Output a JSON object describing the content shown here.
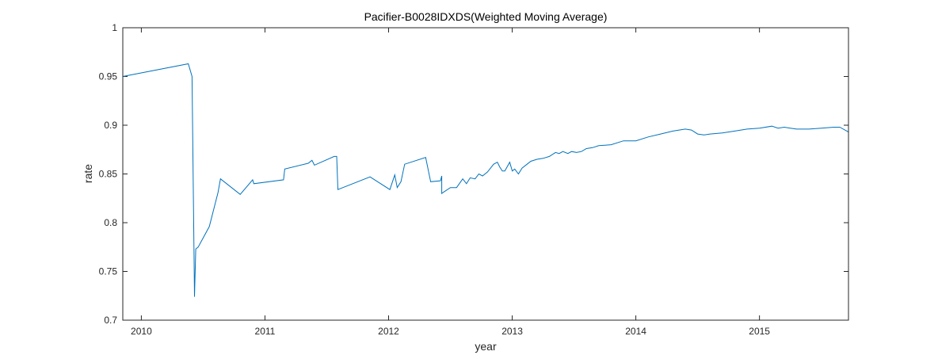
{
  "chart_data": {
    "type": "line",
    "title": "Pacifier-B0028IDXDS(Weighted Moving Average)",
    "xlabel": "year",
    "ylabel": "rate",
    "xlim": [
      2009.85,
      2015.72
    ],
    "ylim": [
      0.7,
      1.0
    ],
    "x_ticks": [
      2010,
      2011,
      2012,
      2013,
      2014,
      2015
    ],
    "y_ticks": [
      0.7,
      0.75,
      0.8,
      0.85,
      0.9,
      0.95,
      1.0
    ],
    "y_tick_labels": [
      "0.7",
      "0.75",
      "0.8",
      "0.85",
      "0.9",
      "0.95",
      "1"
    ],
    "grid": false,
    "line_color": "#0072BD",
    "series": [
      {
        "x": [
          2009.85,
          2010.38,
          2010.41,
          2010.43,
          2010.44,
          2010.46,
          2010.55,
          2010.62,
          2010.64,
          2010.8,
          2010.9,
          2010.91,
          2011.15,
          2011.16,
          2011.35,
          2011.38,
          2011.4,
          2011.56,
          2011.58,
          2011.59,
          2011.85,
          2012.01,
          2012.05,
          2012.07,
          2012.1,
          2012.13,
          2012.3,
          2012.34,
          2012.42,
          2012.43,
          2012.43,
          2012.44,
          2012.5,
          2012.55,
          2012.6,
          2012.63,
          2012.66,
          2012.7,
          2012.73,
          2012.76,
          2012.8,
          2012.85,
          2012.88,
          2012.9,
          2012.92,
          2012.94,
          2012.98,
          2013.0,
          2013.02,
          2013.05,
          2013.08,
          2013.12,
          2013.15,
          2013.2,
          2013.25,
          2013.3,
          2013.35,
          2013.38,
          2013.41,
          2013.45,
          2013.48,
          2013.52,
          2013.56,
          2013.6,
          2013.65,
          2013.7,
          2013.8,
          2013.9,
          2014.0,
          2014.1,
          2014.2,
          2014.3,
          2014.4,
          2014.45,
          2014.5,
          2014.55,
          2014.6,
          2014.7,
          2014.8,
          2014.9,
          2015.0,
          2015.1,
          2015.15,
          2015.2,
          2015.25,
          2015.3,
          2015.4,
          2015.5,
          2015.6,
          2015.65,
          2015.72
        ],
        "y": [
          0.95,
          0.963,
          0.95,
          0.724,
          0.773,
          0.775,
          0.796,
          0.831,
          0.845,
          0.829,
          0.844,
          0.84,
          0.844,
          0.855,
          0.861,
          0.864,
          0.859,
          0.868,
          0.868,
          0.834,
          0.847,
          0.834,
          0.849,
          0.836,
          0.842,
          0.86,
          0.867,
          0.842,
          0.843,
          0.848,
          0.83,
          0.831,
          0.836,
          0.836,
          0.845,
          0.84,
          0.846,
          0.845,
          0.85,
          0.848,
          0.852,
          0.86,
          0.862,
          0.857,
          0.853,
          0.853,
          0.862,
          0.853,
          0.855,
          0.85,
          0.856,
          0.86,
          0.863,
          0.865,
          0.866,
          0.868,
          0.872,
          0.871,
          0.873,
          0.871,
          0.873,
          0.872,
          0.873,
          0.876,
          0.877,
          0.879,
          0.88,
          0.884,
          0.884,
          0.888,
          0.891,
          0.894,
          0.896,
          0.895,
          0.891,
          0.89,
          0.891,
          0.892,
          0.894,
          0.896,
          0.897,
          0.899,
          0.897,
          0.898,
          0.897,
          0.896,
          0.896,
          0.897,
          0.898,
          0.898,
          0.893
        ]
      }
    ]
  }
}
